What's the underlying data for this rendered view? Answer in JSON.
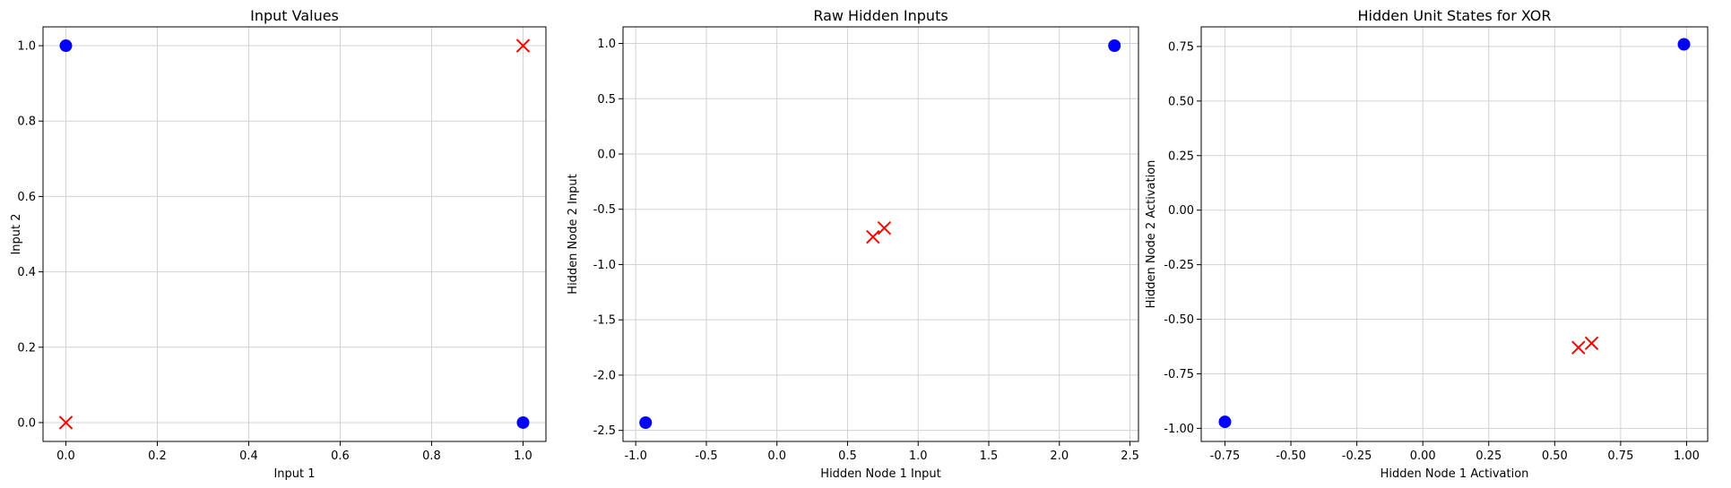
{
  "chart_data": [
    {
      "type": "scatter",
      "title": "Input Values",
      "xlabel": "Input 1",
      "ylabel": "Input 2",
      "xlim": [
        -0.05,
        1.05
      ],
      "ylim": [
        -0.05,
        1.05
      ],
      "xticks": [
        "0.0",
        "0.2",
        "0.4",
        "0.6",
        "0.8",
        "1.0"
      ],
      "yticks": [
        "0.0",
        "0.2",
        "0.4",
        "0.6",
        "0.8",
        "1.0"
      ],
      "grid": true,
      "series": [
        {
          "marker": "circle",
          "color": "#0000ff",
          "points": [
            [
              0,
              1
            ],
            [
              1,
              0
            ]
          ]
        },
        {
          "marker": "x",
          "color": "#ff0000",
          "points": [
            [
              0,
              0
            ],
            [
              1,
              1
            ]
          ]
        }
      ]
    },
    {
      "type": "scatter",
      "title": "Raw Hidden Inputs",
      "xlabel": "Hidden Node 1 Input",
      "ylabel": "Hidden Node 2 Input",
      "xlim": [
        -1.09,
        2.56
      ],
      "ylim": [
        -2.6,
        1.15
      ],
      "xticks": [
        "-1.0",
        "-0.5",
        "0.0",
        "0.5",
        "1.0",
        "1.5",
        "2.0",
        "2.5"
      ],
      "yticks": [
        "-2.5",
        "-2.0",
        "-1.5",
        "-1.0",
        "-0.5",
        "0.0",
        "0.5",
        "1.0"
      ],
      "grid": true,
      "series": [
        {
          "marker": "circle",
          "color": "#0000ff",
          "points": [
            [
              -0.93,
              -2.43
            ],
            [
              2.39,
              0.98
            ]
          ]
        },
        {
          "marker": "x",
          "color": "#ff0000",
          "points": [
            [
              0.68,
              -0.75
            ],
            [
              0.76,
              -0.67
            ]
          ]
        }
      ]
    },
    {
      "type": "scatter",
      "title": "Hidden Unit States for XOR",
      "xlabel": "Hidden Node 1 Activation",
      "ylabel": "Hidden Node 2 Activation",
      "xlim": [
        -0.84,
        1.08
      ],
      "ylim": [
        -1.06,
        0.84
      ],
      "xticks": [
        "-0.75",
        "-0.50",
        "-0.25",
        "0.00",
        "0.25",
        "0.50",
        "0.75",
        "1.00"
      ],
      "yticks": [
        "-1.00",
        "-0.75",
        "-0.50",
        "-0.25",
        "0.00",
        "0.25",
        "0.50",
        "0.75"
      ],
      "grid": true,
      "series": [
        {
          "marker": "circle",
          "color": "#0000ff",
          "points": [
            [
              -0.75,
              -0.97
            ],
            [
              0.99,
              0.76
            ]
          ]
        },
        {
          "marker": "x",
          "color": "#ff0000",
          "points": [
            [
              0.59,
              -0.63
            ],
            [
              0.64,
              -0.61
            ]
          ]
        }
      ]
    }
  ]
}
